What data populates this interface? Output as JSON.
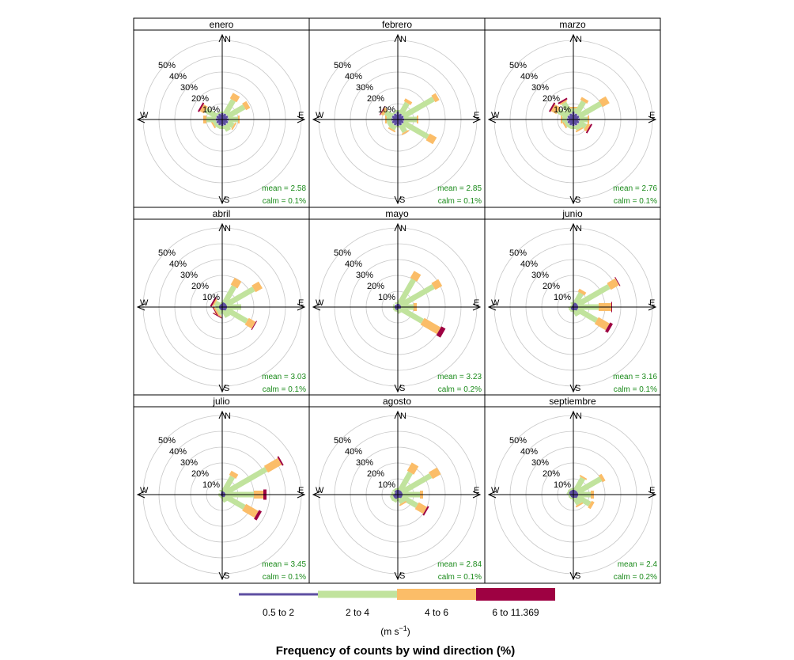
{
  "chart_data": {
    "type": "wind-rose",
    "title": "Frequency of counts by wind direction (%)",
    "units_label": "(m s",
    "units_sup": "−1",
    "units_close": ")",
    "ring_percent_labels": [
      "10%",
      "20%",
      "30%",
      "40%",
      "50%"
    ],
    "rmax": 50,
    "compass": {
      "n": "N",
      "e": "E",
      "s": "S",
      "w": "W"
    },
    "directions_deg": [
      0,
      30,
      60,
      90,
      120,
      150,
      180,
      210,
      240,
      270,
      300,
      330
    ],
    "speed_bins": [
      {
        "label": "0.5 to 2",
        "color": "#5e4fa2"
      },
      {
        "label": "2 to 4",
        "color": "#c1e39d"
      },
      {
        "label": "4 to 6",
        "color": "#fbbd68"
      },
      {
        "label": "6 to 11.369",
        "color": "#9e0142"
      }
    ],
    "panels": [
      {
        "name": "enero",
        "mean": "mean = 2.58",
        "calm": "calm = 0.1%",
        "freqs": [
          [
            4,
            1,
            0,
            0
          ],
          [
            4,
            10,
            4,
            0
          ],
          [
            4,
            12,
            3,
            0
          ],
          [
            4,
            6,
            1,
            0
          ],
          [
            4,
            4,
            1,
            0
          ],
          [
            4,
            4,
            0,
            0
          ],
          [
            4,
            2,
            0,
            0
          ],
          [
            4,
            2,
            0,
            0
          ],
          [
            4,
            2,
            1,
            0
          ],
          [
            4,
            6,
            2,
            0
          ],
          [
            4,
            8,
            3,
            1
          ],
          [
            4,
            1,
            0,
            0
          ]
        ]
      },
      {
        "name": "febrero",
        "mean": "mean = 2.85",
        "calm": "calm = 0.1%",
        "freqs": [
          [
            5,
            1,
            0,
            0
          ],
          [
            4,
            8,
            2,
            0
          ],
          [
            4,
            22,
            3,
            0
          ],
          [
            4,
            8,
            1,
            0
          ],
          [
            4,
            18,
            5,
            0
          ],
          [
            4,
            5,
            1,
            0
          ],
          [
            4,
            1,
            0,
            0
          ],
          [
            4,
            3,
            1,
            0
          ],
          [
            4,
            3,
            0,
            0
          ],
          [
            4,
            3,
            1,
            0
          ],
          [
            4,
            5,
            2,
            0.5
          ],
          [
            4,
            1,
            0,
            0
          ]
        ]
      },
      {
        "name": "marzo",
        "mean": "mean = 2.76",
        "calm": "calm = 0.1%",
        "freqs": [
          [
            5,
            2,
            1,
            0
          ],
          [
            4,
            9,
            2,
            0
          ],
          [
            4,
            16,
            5,
            0
          ],
          [
            4,
            5,
            1,
            0
          ],
          [
            4,
            5,
            2,
            1
          ],
          [
            4,
            3,
            1,
            0
          ],
          [
            4,
            2,
            0,
            0
          ],
          [
            4,
            2,
            0,
            0
          ],
          [
            4,
            2,
            1,
            0
          ],
          [
            4,
            3,
            1,
            0
          ],
          [
            4,
            7,
            4,
            1
          ],
          [
            4,
            8,
            1,
            1
          ]
        ]
      },
      {
        "name": "abril",
        "mean": "mean = 3.03",
        "calm": "calm = 0.1%",
        "freqs": [
          [
            3,
            0,
            0,
            0
          ],
          [
            3,
            12,
            5,
            0
          ],
          [
            3,
            20,
            5,
            0
          ],
          [
            3,
            9,
            0,
            0
          ],
          [
            3,
            15,
            5,
            0.5
          ],
          [
            3,
            4,
            0,
            0
          ],
          [
            2,
            1,
            0,
            0
          ],
          [
            2,
            3,
            1,
            0.5
          ],
          [
            2,
            2,
            1,
            0.5
          ],
          [
            2,
            1,
            0,
            0
          ],
          [
            2,
            3,
            1,
            1
          ],
          [
            2,
            1,
            0,
            0
          ]
        ]
      },
      {
        "name": "mayo",
        "mean": "mean = 3.23",
        "calm": "calm = 0.2%",
        "freqs": [
          [
            2,
            1,
            0,
            0
          ],
          [
            2,
            18,
            5,
            0
          ],
          [
            2,
            24,
            5,
            0
          ],
          [
            2,
            8,
            2,
            0
          ],
          [
            2,
            16,
            12,
            3
          ],
          [
            2,
            2,
            0,
            0
          ],
          [
            1,
            1,
            0,
            0
          ],
          [
            2,
            1,
            0,
            0
          ],
          [
            2,
            1,
            0,
            0
          ],
          [
            2,
            1,
            0,
            0
          ],
          [
            2,
            0,
            0,
            0
          ],
          [
            1,
            0,
            0,
            0
          ]
        ]
      },
      {
        "name": "junio",
        "mean": "mean = 3.16",
        "calm": "calm = 0.1%",
        "freqs": [
          [
            2,
            1,
            0,
            0
          ],
          [
            3,
            7,
            2,
            0
          ],
          [
            3,
            23,
            6,
            0.5
          ],
          [
            3,
            13,
            8,
            0.5
          ],
          [
            3,
            14,
            8,
            2
          ],
          [
            3,
            3,
            0,
            0
          ],
          [
            2,
            1,
            0,
            0
          ],
          [
            2,
            1,
            0,
            0
          ],
          [
            2,
            1,
            0,
            0
          ],
          [
            1,
            0,
            0,
            0
          ],
          [
            1,
            1,
            0,
            0
          ],
          [
            1,
            0,
            0,
            0
          ]
        ]
      },
      {
        "name": "julio",
        "mean": "mean = 3.45",
        "calm": "calm = 0.1%",
        "freqs": [
          [
            2,
            1,
            0,
            0
          ],
          [
            2,
            11,
            3,
            0
          ],
          [
            2,
            30,
            10,
            1
          ],
          [
            2,
            18,
            6,
            2
          ],
          [
            2,
            14,
            9,
            2
          ],
          [
            2,
            3,
            0,
            0
          ],
          [
            1,
            0,
            0,
            0
          ],
          [
            1,
            1,
            0,
            0
          ],
          [
            1,
            1,
            0,
            0
          ],
          [
            1,
            0,
            0,
            0
          ],
          [
            1,
            0,
            0,
            0
          ],
          [
            1,
            0,
            0,
            0
          ]
        ]
      },
      {
        "name": "agosto",
        "mean": "mean = 2.84",
        "calm": "calm = 0.1%",
        "freqs": [
          [
            3,
            1,
            0,
            0
          ],
          [
            3,
            13,
            6,
            0
          ],
          [
            3,
            21,
            6,
            0
          ],
          [
            3,
            11,
            2,
            0
          ],
          [
            3,
            11,
            6,
            1
          ],
          [
            3,
            3,
            1,
            0
          ],
          [
            2,
            1,
            0,
            0
          ],
          [
            3,
            2,
            0,
            0
          ],
          [
            3,
            2,
            0,
            0
          ],
          [
            3,
            1,
            0,
            0
          ],
          [
            2,
            1,
            0,
            0
          ],
          [
            3,
            1,
            0,
            0
          ]
        ]
      },
      {
        "name": "septiembre",
        "mean": "mean = 2.4",
        "calm": "calm = 0.2%",
        "freqs": [
          [
            3,
            1,
            0,
            0
          ],
          [
            3,
            9,
            1,
            0
          ],
          [
            3,
            17,
            2,
            0
          ],
          [
            3,
            8,
            2,
            0
          ],
          [
            3,
            9,
            2,
            0
          ],
          [
            3,
            4,
            1,
            0
          ],
          [
            2,
            1,
            0,
            0
          ],
          [
            2,
            1,
            0,
            0
          ],
          [
            2,
            1,
            0,
            0
          ],
          [
            2,
            1,
            0,
            0
          ],
          [
            3,
            1,
            0,
            0
          ],
          [
            3,
            1,
            0,
            0
          ]
        ]
      }
    ]
  }
}
